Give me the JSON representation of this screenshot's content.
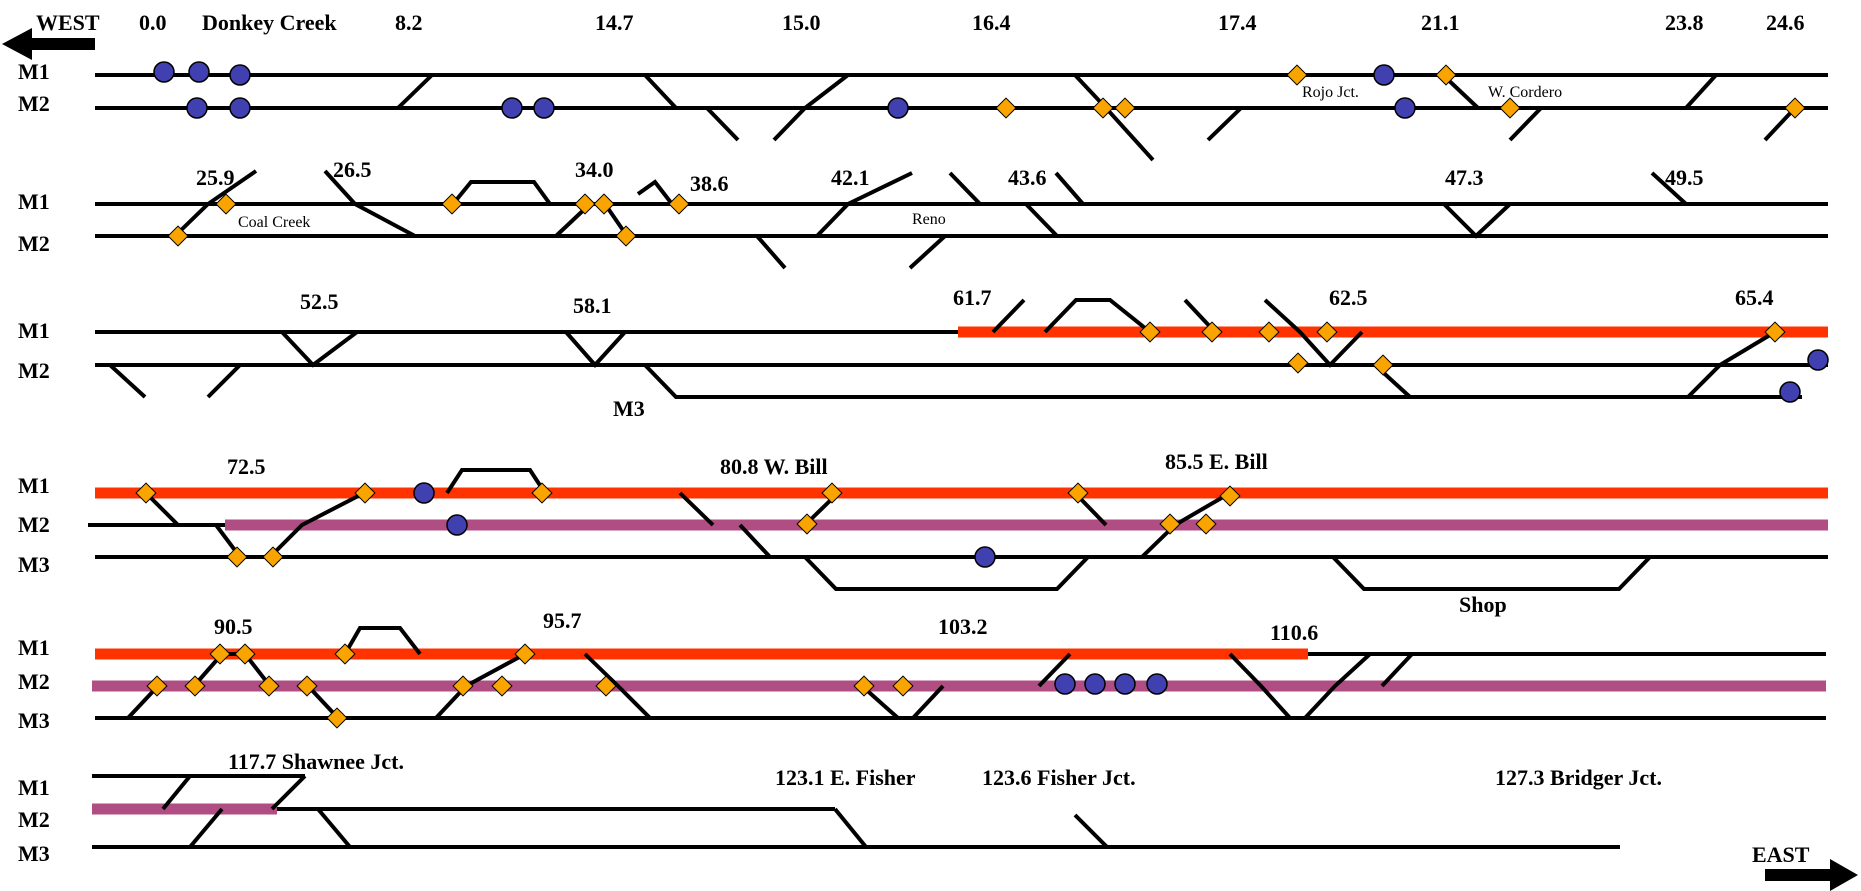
{
  "colors": {
    "track": "#000000",
    "red_occupancy": "#ff3300",
    "purple_occupancy": "#b04d82",
    "signal_diamond": "#f9a400",
    "train_circle": "#4040b0"
  },
  "directions": {
    "west": "WEST",
    "east": "EAST"
  },
  "tracks": {
    "m1": "M1",
    "m2": "M2",
    "m3": "M3"
  },
  "mileposts": {
    "r1": [
      "0.0",
      "8.2",
      "14.7",
      "15.0",
      "16.4",
      "17.4",
      "21.1",
      "23.8",
      "24.6"
    ],
    "r2": [
      "25.9",
      "26.5",
      "34.0",
      "38.6",
      "42.1",
      "43.6",
      "47.3",
      "49.5"
    ],
    "r3": [
      "52.5",
      "58.1",
      "61.7",
      "62.5",
      "65.4"
    ],
    "r4": [
      "72.5"
    ],
    "r5": [
      "90.5",
      "95.7",
      "103.2",
      "110.6"
    ]
  },
  "places": {
    "donkey_creek": "Donkey Creek",
    "rojo_jct": "Rojo Jct.",
    "w_cordero": "W. Cordero",
    "coal_creek": "Coal Creek",
    "reno": "Reno",
    "w_bill": "80.8 W. Bill",
    "e_bill": "85.5 E. Bill",
    "shop": "Shop",
    "shawnee_jct": "117.7 Shawnee Jct.",
    "e_fisher": "123.1 E. Fisher",
    "fisher_jct": "123.6 Fisher Jct.",
    "bridger_jct": "127.3 Bridger Jct."
  }
}
